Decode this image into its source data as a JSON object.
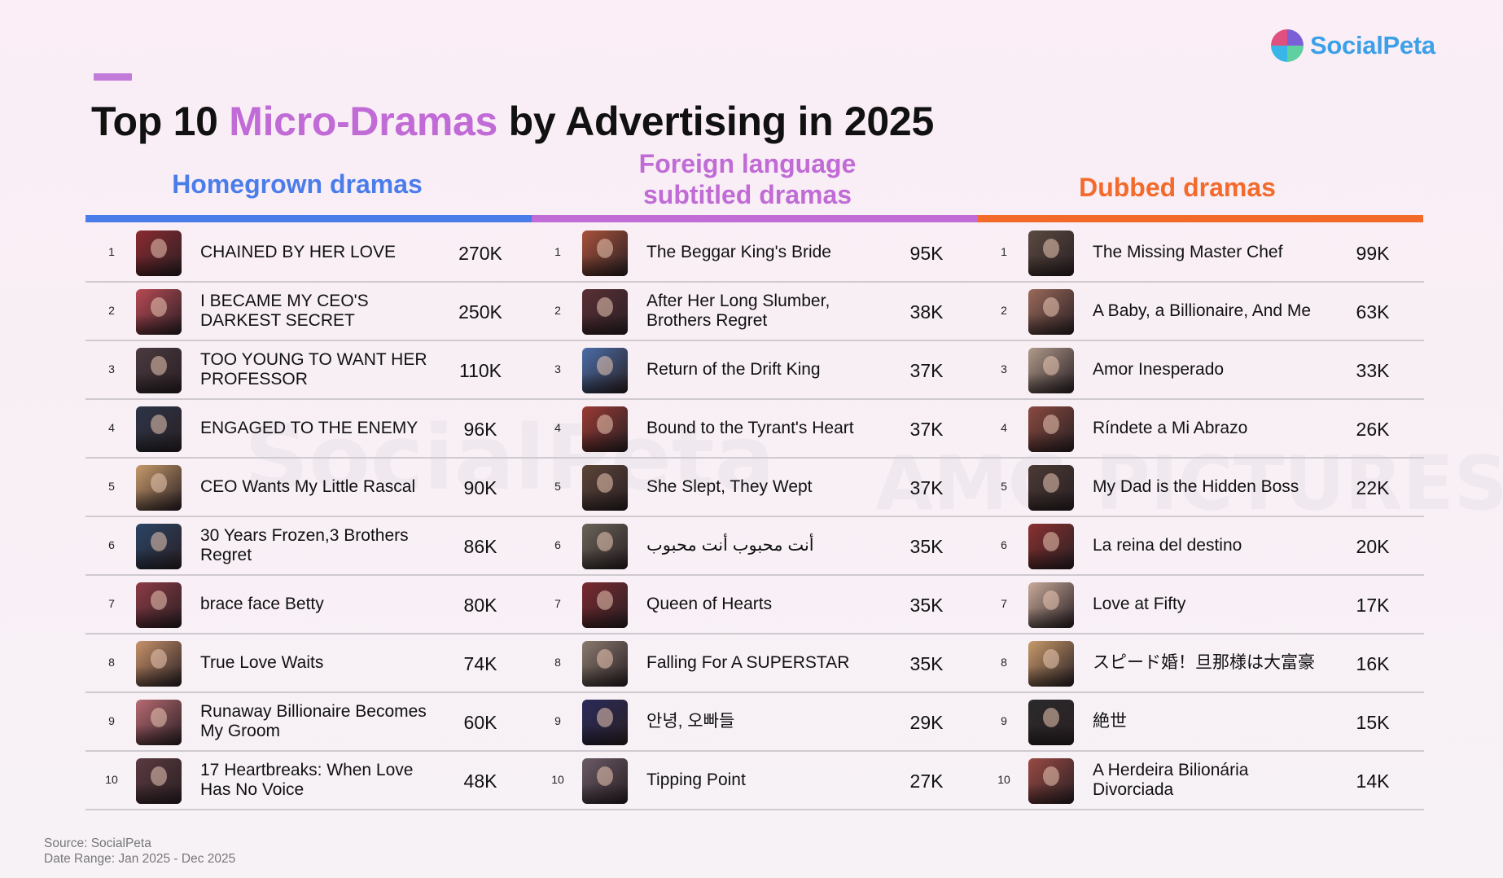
{
  "brand": {
    "name": "SocialPeta",
    "logo_colors": [
      "#e0507f",
      "#7b5fd6",
      "#38b6e8",
      "#5fd0a0"
    ],
    "text_color": "#3aa0e8"
  },
  "watermarks": [
    "SocialPeta",
    "AMG PICTURES"
  ],
  "title": {
    "part1": "Top 10 ",
    "highlight": "Micro-Dramas",
    "part2": " by Advertising in 2025",
    "highlight_color": "#c06bd6"
  },
  "colors": {
    "homegrown": "#4a7dea",
    "foreign": "#c06bd6",
    "dubbed": "#f36a2b",
    "accent": "#c37bd9"
  },
  "chart_data": {
    "type": "table",
    "title": "Top 10 Micro-Dramas by Advertising in 2025",
    "groups": [
      {
        "key": "homegrown",
        "name": "Homegrown dramas",
        "header_lines": [
          "Homegrown dramas"
        ],
        "rows": [
          {
            "rank": "1",
            "title": "CHAINED BY HER LOVE",
            "value": "270K",
            "thumb_color": "#8c2a30"
          },
          {
            "rank": "2",
            "title": "I BECAME MY CEO'S DARKEST SECRET",
            "value": "250K",
            "thumb_color": "#b94a55"
          },
          {
            "rank": "3",
            "title": "TOO YOUNG TO WANT HER PROFESSOR",
            "value": "110K",
            "thumb_color": "#4a3a3f"
          },
          {
            "rank": "4",
            "title": "ENGAGED TO THE ENEMY",
            "value": "96K",
            "thumb_color": "#2c3548"
          },
          {
            "rank": "5",
            "title": "CEO Wants My Little Rascal",
            "value": "90K",
            "thumb_color": "#c69a6a"
          },
          {
            "rank": "6",
            "title": "30 Years Frozen,3 Brothers Regret",
            "value": "86K",
            "thumb_color": "#2a4466"
          },
          {
            "rank": "7",
            "title": "brace face Betty",
            "value": "80K",
            "thumb_color": "#8e3b45"
          },
          {
            "rank": "8",
            "title": "True Love Waits",
            "value": "74K",
            "thumb_color": "#c8926a"
          },
          {
            "rank": "9",
            "title": "Runaway Billionaire Becomes My Groom",
            "value": "60K",
            "thumb_color": "#b86a72"
          },
          {
            "rank": "10",
            "title": "17 Heartbreaks: When Love Has No Voice",
            "value": "48K",
            "thumb_color": "#5a3a40"
          }
        ]
      },
      {
        "key": "foreign",
        "name": "Foreign language subtitled dramas",
        "header_lines": [
          "Foreign language",
          "subtitled dramas"
        ],
        "rows": [
          {
            "rank": "1",
            "title": "The Beggar King's Bride",
            "value": "95K",
            "thumb_color": "#a8523a"
          },
          {
            "rank": "2",
            "title": "After Her Long Slumber, Brothers Regret",
            "value": "38K",
            "thumb_color": "#5a3036"
          },
          {
            "rank": "3",
            "title": "Return of the Drift King",
            "value": "37K",
            "thumb_color": "#4a6ea8"
          },
          {
            "rank": "4",
            "title": "Bound to the Tyrant's Heart",
            "value": "37K",
            "thumb_color": "#9a3a34"
          },
          {
            "rank": "5",
            "title": "She Slept, They Wept",
            "value": "37K",
            "thumb_color": "#5c4438"
          },
          {
            "rank": "6",
            "title": "أنت محبوب أنت محبوب",
            "value": "35K",
            "thumb_color": "#6a6458"
          },
          {
            "rank": "7",
            "title": "Queen of Hearts",
            "value": "35K",
            "thumb_color": "#7a2a30"
          },
          {
            "rank": "8",
            "title": "Falling For A SUPERSTAR",
            "value": "35K",
            "thumb_color": "#8a7a6e"
          },
          {
            "rank": "9",
            "title": "안녕, 오빠들",
            "value": "29K",
            "thumb_color": "#2a2a5a"
          },
          {
            "rank": "10",
            "title": "Tipping Point",
            "value": "27K",
            "thumb_color": "#6a5a66"
          }
        ]
      },
      {
        "key": "dubbed",
        "name": "Dubbed dramas",
        "header_lines": [
          "Dubbed dramas"
        ],
        "rows": [
          {
            "rank": "1",
            "title": "The Missing Master Chef",
            "value": "99K",
            "thumb_color": "#5a4a40"
          },
          {
            "rank": "2",
            "title": "A Baby, a Billionaire, And Me",
            "value": "63K",
            "thumb_color": "#9a6a5a"
          },
          {
            "rank": "3",
            "title": "Amor Inesperado",
            "value": "33K",
            "thumb_color": "#b09a8a"
          },
          {
            "rank": "4",
            "title": "Ríndete a Mi Abrazo",
            "value": "26K",
            "thumb_color": "#8a4a40"
          },
          {
            "rank": "5",
            "title": "My Dad is the Hidden Boss",
            "value": "22K",
            "thumb_color": "#4a3a34"
          },
          {
            "rank": "6",
            "title": "La reina del destino",
            "value": "20K",
            "thumb_color": "#8a3030"
          },
          {
            "rank": "7",
            "title": "Love at Fifty",
            "value": "17K",
            "thumb_color": "#c8aa9a"
          },
          {
            "rank": "8",
            "title": "スピード婚！旦那様は大富豪",
            "value": "16K",
            "thumb_color": "#c89a6a"
          },
          {
            "rank": "9",
            "title": "絶世",
            "value": "15K",
            "thumb_color": "#2a2a2a"
          },
          {
            "rank": "10",
            "title": "A Herdeira Bilionária Divorciada",
            "value": "14K",
            "thumb_color": "#9a4a44"
          }
        ]
      }
    ]
  },
  "footer": {
    "source": "Source: SocialPeta",
    "date_range": "Date Range: Jan 2025 - Dec 2025"
  }
}
